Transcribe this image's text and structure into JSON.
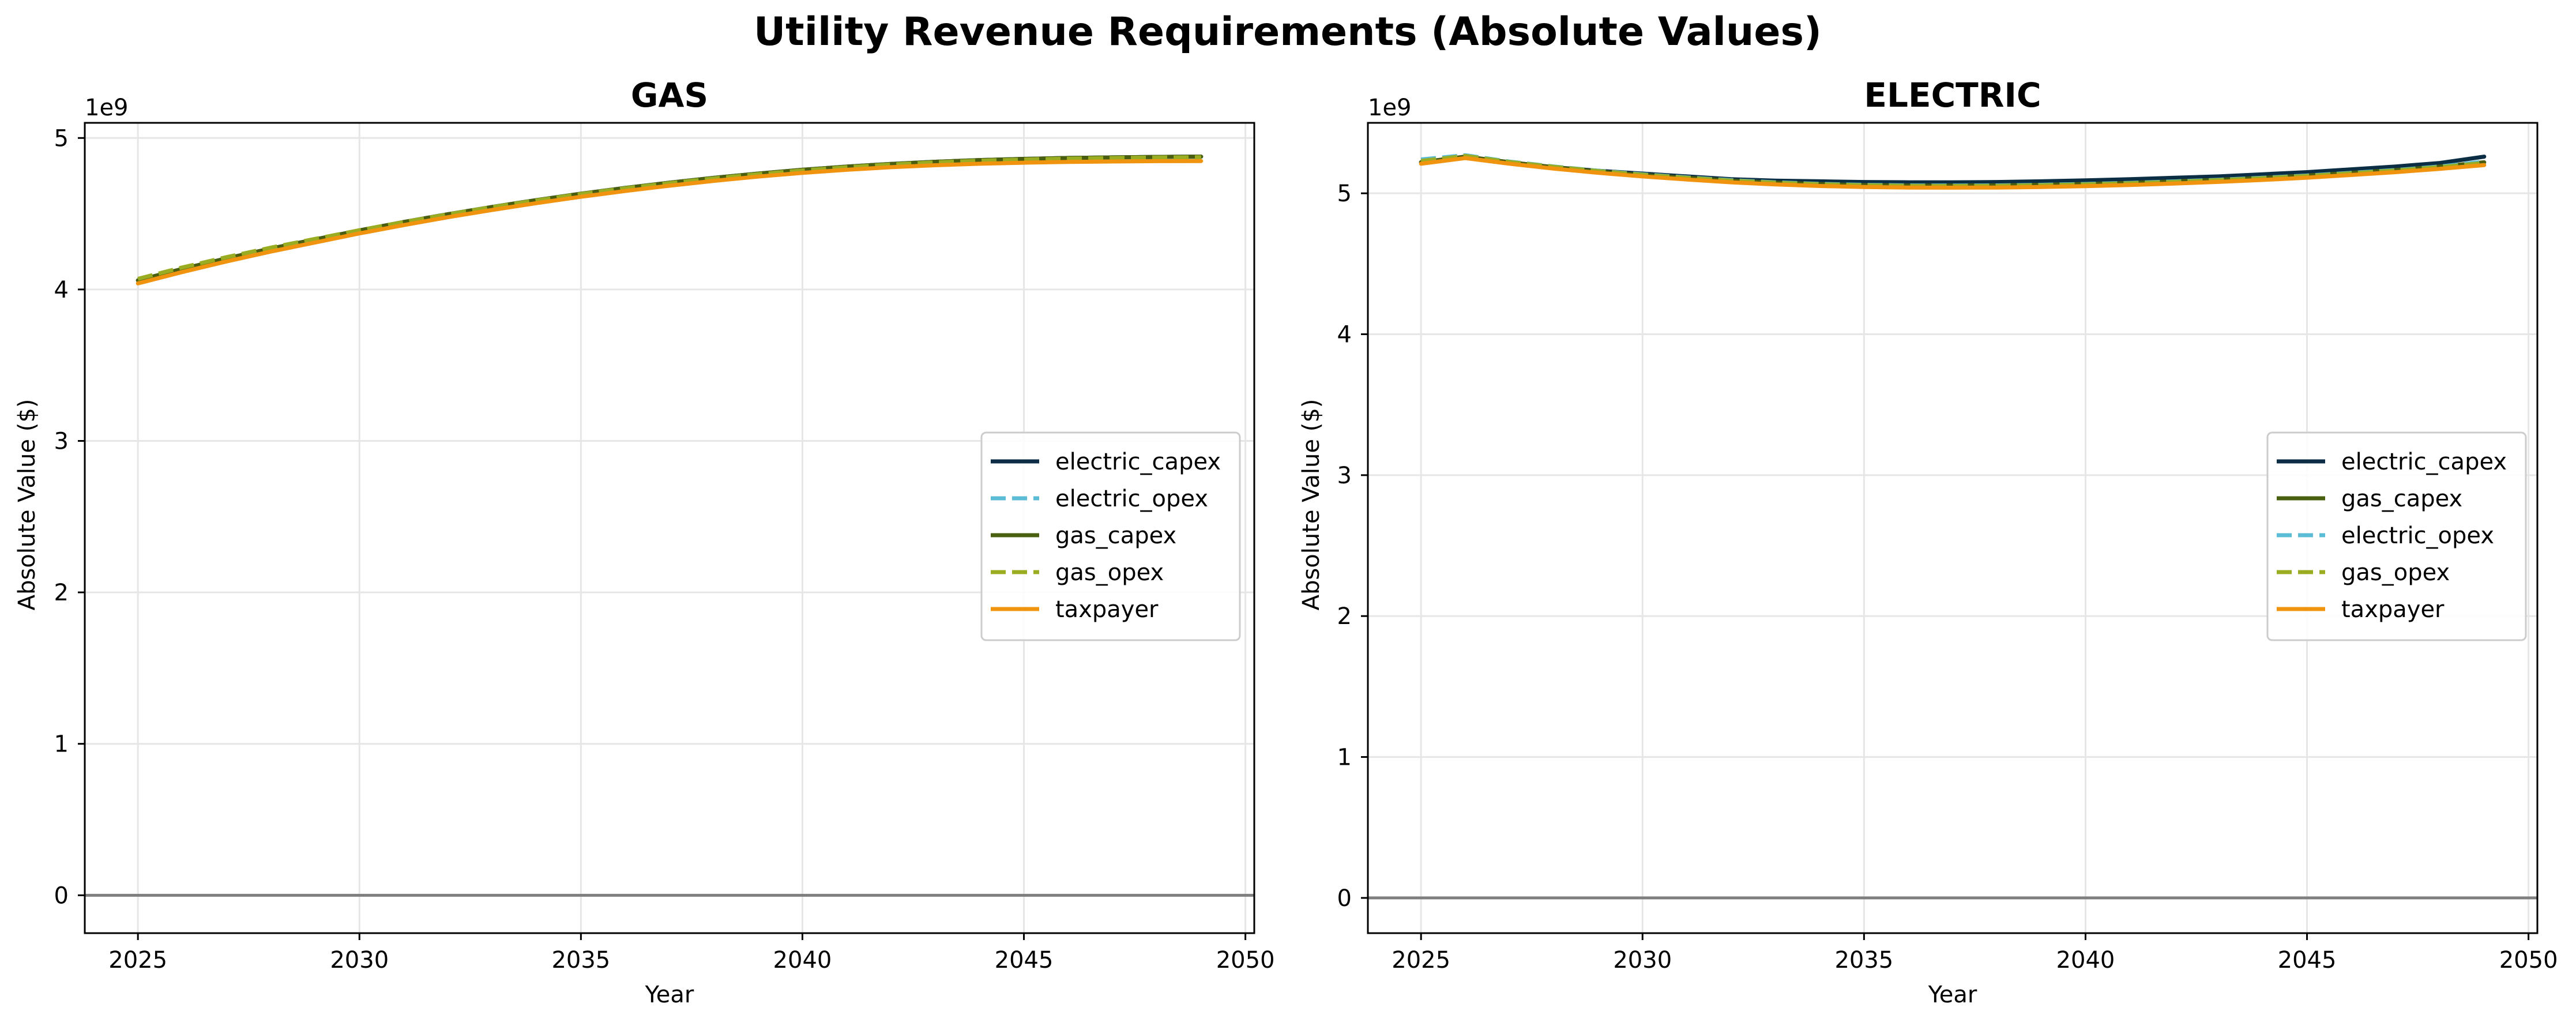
{
  "figure": {
    "title": "Utility Revenue Requirements (Absolute Values)"
  },
  "chart_data": [
    {
      "type": "line",
      "title": "GAS",
      "xlabel": "Year",
      "ylabel": "Absolute Value ($)",
      "y_offset_label": "1e9",
      "xlim": [
        2023.8,
        2050.2
      ],
      "ylim": [
        -0.25,
        5.1
      ],
      "xticks": [
        2025,
        2030,
        2035,
        2040,
        2045,
        2050
      ],
      "yticks": [
        0,
        1,
        2,
        3,
        4,
        5
      ],
      "grid": true,
      "zero_line": true,
      "legend_placement": "center-right",
      "x": [
        2025,
        2026,
        2027,
        2028,
        2029,
        2030,
        2031,
        2032,
        2033,
        2034,
        2035,
        2036,
        2037,
        2038,
        2039,
        2040,
        2041,
        2042,
        2043,
        2044,
        2045,
        2046,
        2047,
        2048,
        2049
      ],
      "series": [
        {
          "name": "electric_capex",
          "color": "#0b2e45",
          "dash": "solid",
          "values": [
            4.06,
            4.135,
            4.205,
            4.27,
            4.33,
            4.39,
            4.445,
            4.497,
            4.545,
            4.59,
            4.632,
            4.67,
            4.705,
            4.737,
            4.765,
            4.79,
            4.811,
            4.829,
            4.843,
            4.854,
            4.862,
            4.868,
            4.872,
            4.875,
            4.877
          ]
        },
        {
          "name": "electric_opex",
          "color": "#5bbcd6",
          "dash": "dashed",
          "values": [
            4.06,
            4.135,
            4.205,
            4.27,
            4.33,
            4.39,
            4.445,
            4.497,
            4.545,
            4.59,
            4.632,
            4.67,
            4.705,
            4.737,
            4.765,
            4.79,
            4.811,
            4.829,
            4.843,
            4.854,
            4.862,
            4.868,
            4.872,
            4.875,
            4.877
          ]
        },
        {
          "name": "gas_capex",
          "color": "#4a5e0f",
          "dash": "solid",
          "values": [
            4.06,
            4.135,
            4.205,
            4.27,
            4.33,
            4.39,
            4.445,
            4.497,
            4.545,
            4.59,
            4.632,
            4.67,
            4.705,
            4.737,
            4.765,
            4.79,
            4.811,
            4.829,
            4.843,
            4.854,
            4.862,
            4.868,
            4.872,
            4.875,
            4.877
          ]
        },
        {
          "name": "gas_opex",
          "color": "#9aac22",
          "dash": "dashed",
          "values": [
            4.07,
            4.145,
            4.213,
            4.276,
            4.334,
            4.391,
            4.445,
            4.496,
            4.544,
            4.588,
            4.63,
            4.668,
            4.702,
            4.733,
            4.761,
            4.786,
            4.807,
            4.825,
            4.839,
            4.85,
            4.858,
            4.864,
            4.868,
            4.871,
            4.873
          ]
        },
        {
          "name": "taxpayer",
          "color": "#f0930f",
          "dash": "solid",
          "values": [
            4.04,
            4.115,
            4.185,
            4.25,
            4.31,
            4.37,
            4.425,
            4.477,
            4.525,
            4.57,
            4.612,
            4.65,
            4.685,
            4.717,
            4.745,
            4.77,
            4.79,
            4.807,
            4.82,
            4.83,
            4.837,
            4.842,
            4.845,
            4.847,
            4.848
          ]
        }
      ]
    },
    {
      "type": "line",
      "title": "ELECTRIC",
      "xlabel": "Year",
      "ylabel": "Absolute Value ($)",
      "y_offset_label": "1e9",
      "xlim": [
        2023.8,
        2050.2
      ],
      "ylim": [
        -0.25,
        5.5
      ],
      "xticks": [
        2025,
        2030,
        2035,
        2040,
        2045,
        2050
      ],
      "yticks": [
        0,
        1,
        2,
        3,
        4,
        5
      ],
      "grid": true,
      "zero_line": true,
      "legend_placement": "center-right",
      "x": [
        2025,
        2026,
        2027,
        2028,
        2029,
        2030,
        2031,
        2032,
        2033,
        2034,
        2035,
        2036,
        2037,
        2038,
        2039,
        2040,
        2041,
        2042,
        2043,
        2044,
        2045,
        2046,
        2047,
        2048,
        2049
      ],
      "series": [
        {
          "name": "electric_capex",
          "color": "#0b2e45",
          "dash": "solid",
          "values": [
            5.22,
            5.26,
            5.22,
            5.185,
            5.16,
            5.14,
            5.12,
            5.1,
            5.09,
            5.085,
            5.08,
            5.078,
            5.078,
            5.08,
            5.085,
            5.092,
            5.1,
            5.11,
            5.12,
            5.135,
            5.15,
            5.17,
            5.19,
            5.215,
            5.26
          ]
        },
        {
          "name": "gas_capex",
          "color": "#4a5e0f",
          "dash": "solid",
          "values": [
            5.22,
            5.26,
            5.22,
            5.185,
            5.155,
            5.13,
            5.11,
            5.09,
            5.075,
            5.065,
            5.058,
            5.055,
            5.055,
            5.056,
            5.06,
            5.066,
            5.074,
            5.084,
            5.096,
            5.11,
            5.126,
            5.145,
            5.165,
            5.19,
            5.22
          ]
        },
        {
          "name": "electric_opex",
          "color": "#5bbcd6",
          "dash": "dashed",
          "values": [
            5.24,
            5.27,
            5.225,
            5.19,
            5.16,
            5.135,
            5.113,
            5.093,
            5.078,
            5.067,
            5.06,
            5.056,
            5.055,
            5.056,
            5.06,
            5.066,
            5.074,
            5.084,
            5.096,
            5.11,
            5.126,
            5.145,
            5.165,
            5.19,
            5.225
          ]
        },
        {
          "name": "gas_opex",
          "color": "#9aac22",
          "dash": "dashed",
          "values": [
            5.23,
            5.265,
            5.222,
            5.188,
            5.158,
            5.132,
            5.11,
            5.09,
            5.075,
            5.064,
            5.057,
            5.053,
            5.052,
            5.053,
            5.057,
            5.063,
            5.071,
            5.081,
            5.093,
            5.107,
            5.123,
            5.142,
            5.162,
            5.186,
            5.215
          ]
        },
        {
          "name": "taxpayer",
          "color": "#f0930f",
          "dash": "solid",
          "values": [
            5.21,
            5.25,
            5.21,
            5.175,
            5.145,
            5.12,
            5.098,
            5.078,
            5.063,
            5.052,
            5.045,
            5.041,
            5.04,
            5.041,
            5.045,
            5.051,
            5.059,
            5.069,
            5.081,
            5.095,
            5.111,
            5.13,
            5.15,
            5.174,
            5.2
          ]
        }
      ]
    }
  ]
}
